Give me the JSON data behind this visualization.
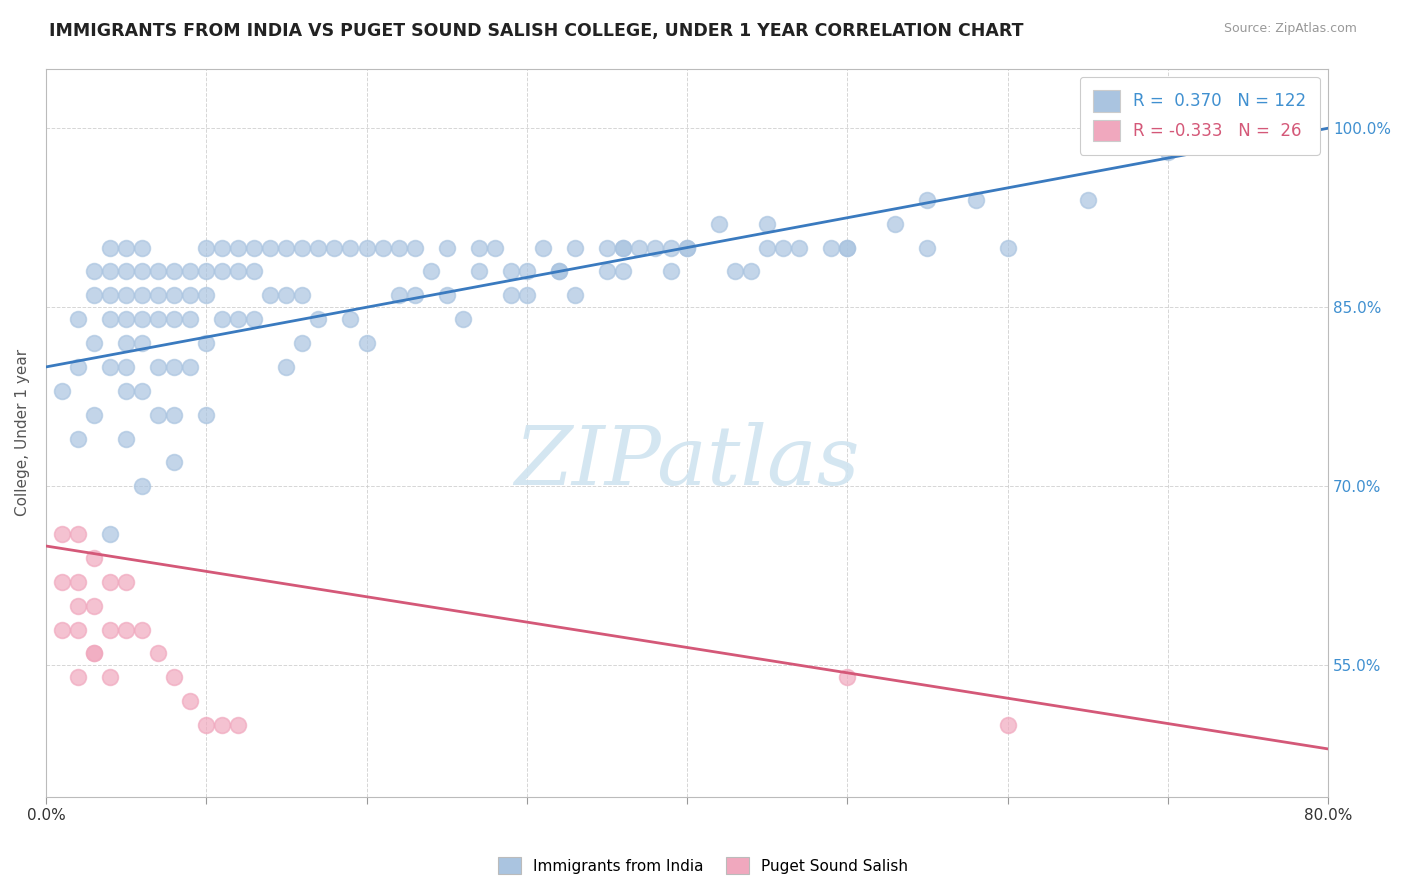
{
  "title": "IMMIGRANTS FROM INDIA VS PUGET SOUND SALISH COLLEGE, UNDER 1 YEAR CORRELATION CHART",
  "source": "Source: ZipAtlas.com",
  "ylabel": "College, Under 1 year",
  "xlim": [
    0.0,
    0.8
  ],
  "ylim": [
    0.44,
    1.05
  ],
  "xticks": [
    0.0,
    0.1,
    0.2,
    0.3,
    0.4,
    0.5,
    0.6,
    0.7,
    0.8
  ],
  "xtick_labels": [
    "0.0%",
    "",
    "",
    "",
    "",
    "",
    "",
    "",
    "80.0%"
  ],
  "ytick_positions": [
    0.55,
    0.7,
    0.85,
    1.0
  ],
  "ytick_labels": [
    "55.0%",
    "70.0%",
    "85.0%",
    "100.0%"
  ],
  "blue_color": "#aac4e0",
  "pink_color": "#f0a8be",
  "blue_line_color": "#3a7abf",
  "pink_line_color": "#d45878",
  "legend_blue_r": "0.370",
  "legend_blue_n": "122",
  "legend_pink_r": "-0.333",
  "legend_pink_n": "26",
  "watermark": "ZIPatlas",
  "watermark_color": "#d0e4f0",
  "title_color": "#222222",
  "title_fontsize": 12.5,
  "blue_scatter_x": [
    0.01,
    0.02,
    0.02,
    0.02,
    0.03,
    0.03,
    0.03,
    0.03,
    0.04,
    0.04,
    0.04,
    0.04,
    0.04,
    0.05,
    0.05,
    0.05,
    0.05,
    0.05,
    0.05,
    0.05,
    0.05,
    0.06,
    0.06,
    0.06,
    0.06,
    0.06,
    0.06,
    0.07,
    0.07,
    0.07,
    0.07,
    0.07,
    0.08,
    0.08,
    0.08,
    0.08,
    0.08,
    0.09,
    0.09,
    0.09,
    0.09,
    0.1,
    0.1,
    0.1,
    0.1,
    0.11,
    0.11,
    0.11,
    0.12,
    0.12,
    0.12,
    0.13,
    0.13,
    0.13,
    0.14,
    0.14,
    0.15,
    0.15,
    0.16,
    0.16,
    0.17,
    0.18,
    0.19,
    0.2,
    0.21,
    0.22,
    0.23,
    0.24,
    0.25,
    0.27,
    0.28,
    0.29,
    0.3,
    0.31,
    0.32,
    0.33,
    0.35,
    0.36,
    0.37,
    0.38,
    0.39,
    0.4,
    0.42,
    0.44,
    0.45,
    0.47,
    0.5,
    0.53,
    0.55,
    0.58,
    0.17,
    0.22,
    0.27,
    0.32,
    0.36,
    0.4,
    0.45,
    0.5,
    0.55,
    0.6,
    0.65,
    0.7,
    0.3,
    0.2,
    0.25,
    0.35,
    0.15,
    0.1,
    0.08,
    0.06,
    0.04,
    0.16,
    0.19,
    0.23,
    0.26,
    0.29,
    0.33,
    0.36,
    0.39,
    0.43,
    0.46,
    0.49
  ],
  "blue_scatter_y": [
    0.78,
    0.74,
    0.8,
    0.84,
    0.76,
    0.82,
    0.88,
    0.86,
    0.8,
    0.84,
    0.88,
    0.9,
    0.86,
    0.82,
    0.86,
    0.88,
    0.9,
    0.84,
    0.78,
    0.8,
    0.74,
    0.84,
    0.88,
    0.9,
    0.86,
    0.82,
    0.78,
    0.86,
    0.88,
    0.84,
    0.8,
    0.76,
    0.88,
    0.86,
    0.84,
    0.8,
    0.76,
    0.88,
    0.86,
    0.84,
    0.8,
    0.9,
    0.88,
    0.86,
    0.82,
    0.9,
    0.88,
    0.84,
    0.9,
    0.88,
    0.84,
    0.9,
    0.88,
    0.84,
    0.9,
    0.86,
    0.9,
    0.86,
    0.9,
    0.86,
    0.9,
    0.9,
    0.9,
    0.9,
    0.9,
    0.9,
    0.9,
    0.88,
    0.9,
    0.9,
    0.9,
    0.88,
    0.88,
    0.9,
    0.88,
    0.9,
    0.9,
    0.9,
    0.9,
    0.9,
    0.9,
    0.9,
    0.92,
    0.88,
    0.9,
    0.9,
    0.9,
    0.92,
    0.9,
    0.94,
    0.84,
    0.86,
    0.88,
    0.88,
    0.9,
    0.9,
    0.92,
    0.9,
    0.94,
    0.9,
    0.94,
    0.98,
    0.86,
    0.82,
    0.86,
    0.88,
    0.8,
    0.76,
    0.72,
    0.7,
    0.66,
    0.82,
    0.84,
    0.86,
    0.84,
    0.86,
    0.86,
    0.88,
    0.88,
    0.88,
    0.9,
    0.9
  ],
  "pink_scatter_x": [
    0.01,
    0.01,
    0.01,
    0.02,
    0.02,
    0.02,
    0.02,
    0.03,
    0.03,
    0.03,
    0.04,
    0.04,
    0.05,
    0.05,
    0.06,
    0.07,
    0.08,
    0.09,
    0.1,
    0.11,
    0.12,
    0.5,
    0.6,
    0.02,
    0.03,
    0.04
  ],
  "pink_scatter_y": [
    0.66,
    0.62,
    0.58,
    0.66,
    0.62,
    0.58,
    0.54,
    0.64,
    0.6,
    0.56,
    0.62,
    0.58,
    0.62,
    0.58,
    0.58,
    0.56,
    0.54,
    0.52,
    0.5,
    0.5,
    0.5,
    0.54,
    0.5,
    0.6,
    0.56,
    0.54
  ],
  "blue_trendline_x": [
    0.0,
    0.8
  ],
  "blue_trendline_y": [
    0.8,
    1.0
  ],
  "pink_trendline_x": [
    0.0,
    0.8
  ],
  "pink_trendline_y": [
    0.65,
    0.48
  ]
}
